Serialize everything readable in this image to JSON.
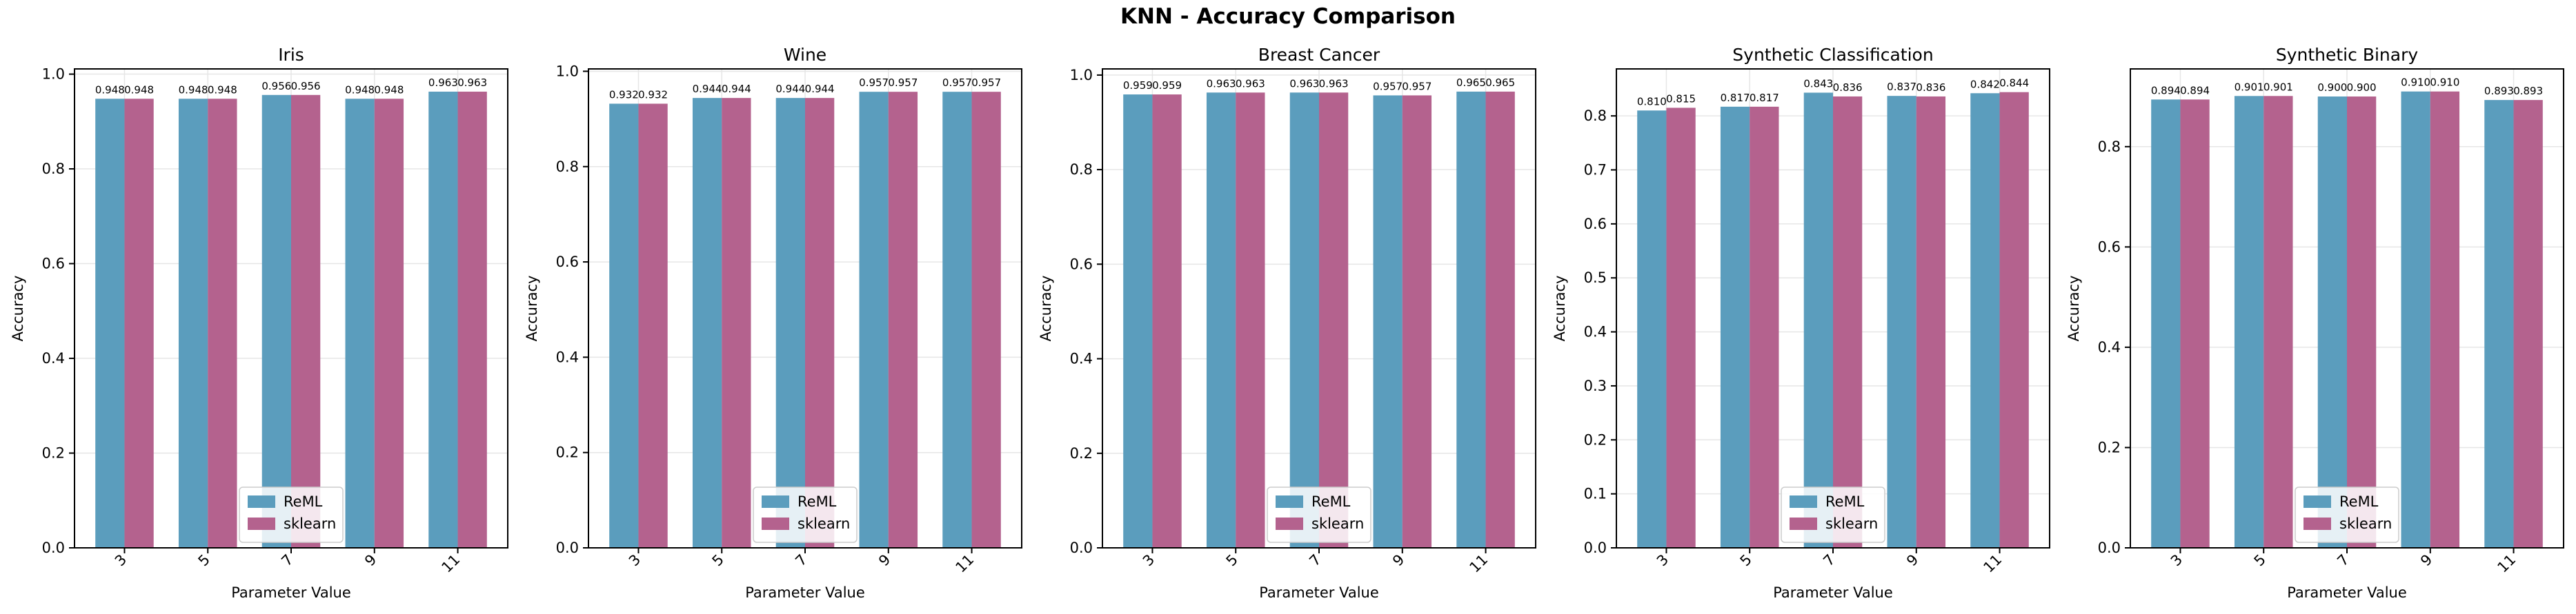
{
  "figure": {
    "title": "KNN - Accuracy Comparison"
  },
  "colors": {
    "reml": "#5b9dbd",
    "sklearn": "#b4628e",
    "axes": "#000000",
    "grid": "#e6e6e6",
    "legend_border": "#cccccc"
  },
  "chart_data": [
    {
      "type": "bar",
      "title": "Iris",
      "xlabel": "Parameter Value",
      "ylabel": "Accuracy",
      "categories": [
        "3",
        "5",
        "7",
        "9",
        "11"
      ],
      "ylim": [
        0,
        1.011
      ],
      "yticks": [
        "0.0",
        "0.2",
        "0.4",
        "0.6",
        "0.8",
        "1.0"
      ],
      "ytick_values": [
        0,
        0.2,
        0.4,
        0.6,
        0.8,
        1.0
      ],
      "grid": true,
      "legend_position": "lower center",
      "series": [
        {
          "name": "ReML",
          "values": [
            0.948,
            0.948,
            0.956,
            0.948,
            0.963
          ],
          "labels": [
            "0.948",
            "0.948",
            "0.956",
            "0.948",
            "0.963"
          ]
        },
        {
          "name": "sklearn",
          "values": [
            0.948,
            0.948,
            0.956,
            0.948,
            0.963
          ],
          "labels": [
            "0.948",
            "0.948",
            "0.956",
            "0.948",
            "0.963"
          ]
        }
      ]
    },
    {
      "type": "bar",
      "title": "Wine",
      "xlabel": "Parameter Value",
      "ylabel": "Accuracy",
      "categories": [
        "3",
        "5",
        "7",
        "9",
        "11"
      ],
      "ylim": [
        0,
        1.005
      ],
      "yticks": [
        "0.0",
        "0.2",
        "0.4",
        "0.6",
        "0.8",
        "1.0"
      ],
      "ytick_values": [
        0,
        0.2,
        0.4,
        0.6,
        0.8,
        1.0
      ],
      "grid": true,
      "legend_position": "lower center",
      "series": [
        {
          "name": "ReML",
          "values": [
            0.932,
            0.944,
            0.944,
            0.957,
            0.957
          ],
          "labels": [
            "0.932",
            "0.944",
            "0.944",
            "0.957",
            "0.957"
          ]
        },
        {
          "name": "sklearn",
          "values": [
            0.932,
            0.944,
            0.944,
            0.957,
            0.957
          ],
          "labels": [
            "0.932",
            "0.944",
            "0.944",
            "0.957",
            "0.957"
          ]
        }
      ]
    },
    {
      "type": "bar",
      "title": "Breast Cancer",
      "xlabel": "Parameter Value",
      "ylabel": "Accuracy",
      "categories": [
        "3",
        "5",
        "7",
        "9",
        "11"
      ],
      "ylim": [
        0,
        1.013
      ],
      "yticks": [
        "0.0",
        "0.2",
        "0.4",
        "0.6",
        "0.8",
        "1.0"
      ],
      "ytick_values": [
        0,
        0.2,
        0.4,
        0.6,
        0.8,
        1.0
      ],
      "grid": true,
      "legend_position": "lower center",
      "series": [
        {
          "name": "ReML",
          "values": [
            0.959,
            0.963,
            0.963,
            0.957,
            0.965
          ],
          "labels": [
            "0.959",
            "0.963",
            "0.963",
            "0.957",
            "0.965"
          ]
        },
        {
          "name": "sklearn",
          "values": [
            0.959,
            0.963,
            0.963,
            0.957,
            0.965
          ],
          "labels": [
            "0.959",
            "0.963",
            "0.963",
            "0.957",
            "0.965"
          ]
        }
      ]
    },
    {
      "type": "bar",
      "title": "Synthetic Classification",
      "xlabel": "Parameter Value",
      "ylabel": "Accuracy",
      "categories": [
        "3",
        "5",
        "7",
        "9",
        "11"
      ],
      "ylim": [
        0,
        0.887
      ],
      "yticks": [
        "0.0",
        "0.1",
        "0.2",
        "0.3",
        "0.4",
        "0.5",
        "0.6",
        "0.7",
        "0.8"
      ],
      "ytick_values": [
        0,
        0.1,
        0.2,
        0.3,
        0.4,
        0.5,
        0.6,
        0.7,
        0.8
      ],
      "grid": true,
      "legend_position": "lower center",
      "series": [
        {
          "name": "ReML",
          "values": [
            0.81,
            0.817,
            0.843,
            0.837,
            0.842
          ],
          "labels": [
            "0.810",
            "0.817",
            "0.843",
            "0.837",
            "0.842"
          ]
        },
        {
          "name": "sklearn",
          "values": [
            0.815,
            0.817,
            0.836,
            0.836,
            0.844
          ],
          "labels": [
            "0.815",
            "0.817",
            "0.836",
            "0.836",
            "0.844"
          ]
        }
      ]
    },
    {
      "type": "bar",
      "title": "Synthetic Binary",
      "xlabel": "Parameter Value",
      "ylabel": "Accuracy",
      "categories": [
        "3",
        "5",
        "7",
        "9",
        "11"
      ],
      "ylim": [
        0,
        0.955
      ],
      "yticks": [
        "0.0",
        "0.2",
        "0.4",
        "0.6",
        "0.8"
      ],
      "ytick_values": [
        0,
        0.2,
        0.4,
        0.6,
        0.8
      ],
      "grid": true,
      "legend_position": "lower center",
      "series": [
        {
          "name": "ReML",
          "values": [
            0.894,
            0.901,
            0.9,
            0.91,
            0.893
          ],
          "labels": [
            "0.894",
            "0.901",
            "0.900",
            "0.910",
            "0.893"
          ]
        },
        {
          "name": "sklearn",
          "values": [
            0.894,
            0.901,
            0.9,
            0.91,
            0.893
          ],
          "labels": [
            "0.894",
            "0.901",
            "0.900",
            "0.910",
            "0.893"
          ]
        }
      ]
    }
  ]
}
